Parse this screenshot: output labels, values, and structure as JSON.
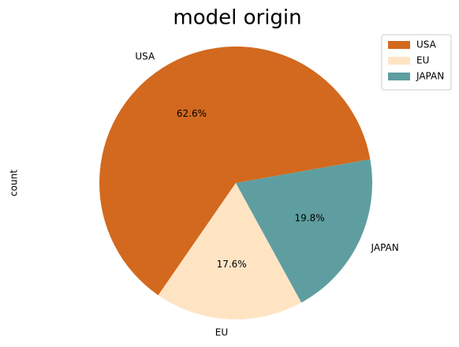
{
  "chart_data": {
    "type": "pie",
    "title": "model origin",
    "ylabel": "count",
    "categories": [
      "USA",
      "EU",
      "JAPAN"
    ],
    "values": [
      62.6,
      17.6,
      19.8
    ],
    "value_labels": [
      "62.6%",
      "17.6%",
      "19.8%"
    ],
    "colors": [
      "#d2691e",
      "#ffe4c4",
      "#5f9ea0"
    ],
    "legend": "upper right"
  }
}
